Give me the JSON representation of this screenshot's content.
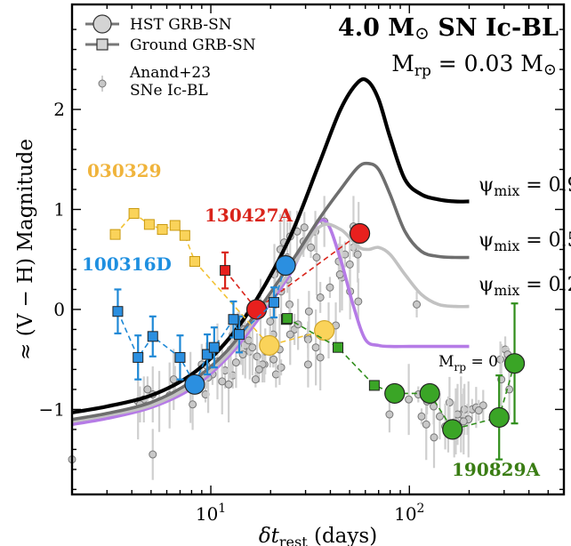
{
  "chart_data": {
    "type": "scatter",
    "title": "4.0 M⊙ SN Ic-BL",
    "subtitle": "Mrp = 0.03 M⊙",
    "title_lines": [
      {
        "main": "4.0 M",
        "sym": "⊙",
        "rest": " SN Ic-BL"
      },
      {
        "main": "M",
        "sub": "rp",
        "rest": " = 0.03 M",
        "sym": "⊙"
      }
    ],
    "xlabel": {
      "main": "δt",
      "sub": "rest",
      "rest": " (days)"
    },
    "ylabel": "≈ (V − H) Magnitude",
    "x_scale": "log",
    "xlim": [
      2,
      600
    ],
    "ylim": [
      -1.85,
      3.05
    ],
    "y_inverted": false,
    "grid": false,
    "xticks": [
      {
        "value": 10,
        "label": "10",
        "sup": "1"
      },
      {
        "value": 100,
        "label": "10",
        "sup": "2"
      }
    ],
    "yticks": [
      {
        "value": -1,
        "label": "−1"
      },
      {
        "value": 0,
        "label": "0"
      },
      {
        "value": 1,
        "label": "1"
      },
      {
        "value": 2,
        "label": "2"
      }
    ],
    "legend": {
      "placement": "top-left",
      "entries": [
        {
          "label": "HST GRB-SN",
          "marker": "circle"
        },
        {
          "label": "Ground GRB-SN",
          "marker": "square"
        },
        {
          "label": "Anand+23",
          "label2": "SNe Ic-BL",
          "marker": "small-circle-errorbar"
        }
      ]
    },
    "models": [
      {
        "label_main": "ψ",
        "label_sub": "mix",
        "label_rest": " = 0.9",
        "color": "#000000",
        "x": [
          2,
          3,
          5,
          8,
          12,
          17,
          25,
          35,
          45,
          55,
          62,
          70,
          80,
          95,
          115,
          140,
          170,
          200
        ],
        "y": [
          -1.03,
          -0.97,
          -0.86,
          -0.65,
          -0.32,
          0.1,
          0.72,
          1.45,
          2.0,
          2.27,
          2.28,
          2.1,
          1.72,
          1.3,
          1.15,
          1.1,
          1.08,
          1.08
        ]
      },
      {
        "label_main": "ψ",
        "label_sub": "mix",
        "label_rest": " = 0.5",
        "color": "#6e6e6e",
        "x": [
          2,
          3,
          5,
          8,
          12,
          17,
          25,
          35,
          45,
          55,
          62,
          70,
          80,
          95,
          115,
          140,
          170,
          200
        ],
        "y": [
          -1.1,
          -1.04,
          -0.93,
          -0.72,
          -0.42,
          -0.03,
          0.45,
          0.9,
          1.2,
          1.42,
          1.46,
          1.4,
          1.15,
          0.78,
          0.58,
          0.53,
          0.52,
          0.52
        ]
      },
      {
        "label_main": "ψ",
        "label_sub": "mix",
        "label_rest": " = 0.2",
        "color": "#c2c2c2",
        "x": [
          2,
          3,
          5,
          8,
          12,
          17,
          25,
          35,
          45,
          55,
          62,
          70,
          80,
          95,
          115,
          140,
          170,
          200
        ],
        "y": [
          -1.12,
          -1.06,
          -0.96,
          -0.76,
          -0.46,
          -0.08,
          0.38,
          0.82,
          0.8,
          0.63,
          0.6,
          0.62,
          0.55,
          0.35,
          0.15,
          0.05,
          0.03,
          0.03
        ]
      },
      {
        "label_main": "M",
        "label_sub": "rp",
        "label_rest": " = 0",
        "color": "#b57be6",
        "x": [
          2,
          3,
          5,
          8,
          12,
          17,
          25,
          32,
          38,
          45,
          52,
          60,
          70,
          80,
          100,
          130,
          170,
          200
        ],
        "y": [
          -1.15,
          -1.09,
          -0.98,
          -0.79,
          -0.49,
          -0.12,
          0.35,
          0.78,
          0.88,
          0.5,
          0.05,
          -0.3,
          -0.36,
          -0.37,
          -0.37,
          -0.37,
          -0.37,
          -0.37
        ]
      }
    ],
    "grb_sn": [
      {
        "name": "030329",
        "color": "#f2c233",
        "fill": "#fad35a",
        "ground": [
          {
            "x": 3.3,
            "y": 0.75
          },
          {
            "x": 4.1,
            "y": 0.96
          },
          {
            "x": 4.9,
            "y": 0.85
          },
          {
            "x": 5.7,
            "y": 0.8
          },
          {
            "x": 6.6,
            "y": 0.84
          },
          {
            "x": 7.4,
            "y": 0.74
          },
          {
            "x": 8.3,
            "y": 0.48
          }
        ],
        "hst": [
          {
            "x": 19.7,
            "y": -0.36
          },
          {
            "x": 37.3,
            "y": -0.21
          }
        ]
      },
      {
        "name": "130427A",
        "color": "#d9241b",
        "fill": "#e8201e",
        "ground": [
          {
            "x": 11.8,
            "y": 0.39,
            "err": 0.18
          }
        ],
        "hst": [
          {
            "x": 17.0,
            "y": 0.0
          },
          {
            "x": 56.3,
            "y": 0.76
          }
        ]
      },
      {
        "name": "100316D",
        "color": "#1f89d6",
        "fill": "#2b8fe0",
        "ground": [
          {
            "x": 3.4,
            "y": -0.02,
            "err": 0.22
          },
          {
            "x": 4.3,
            "y": -0.48,
            "err": 0.22
          },
          {
            "x": 5.1,
            "y": -0.27,
            "err": 0.2
          },
          {
            "x": 7.0,
            "y": -0.48,
            "err": 0.22
          },
          {
            "x": 9.6,
            "y": -0.45,
            "err": 0.2
          },
          {
            "x": 10.4,
            "y": -0.38,
            "err": 0.2
          },
          {
            "x": 13.0,
            "y": -0.1,
            "err": 0.18
          },
          {
            "x": 13.9,
            "y": -0.25,
            "err": 0.18
          },
          {
            "x": 20.8,
            "y": 0.07,
            "err": 0.15
          }
        ],
        "hst": [
          {
            "x": 8.3,
            "y": -0.75
          },
          {
            "x": 23.8,
            "y": 0.44
          }
        ]
      },
      {
        "name": "190829A",
        "color": "#2f8d1a",
        "fill": "#3aa526",
        "ground": [
          {
            "x": 24.0,
            "y": -0.1
          },
          {
            "x": 24.3,
            "y": -0.09
          },
          {
            "x": 43.7,
            "y": -0.38
          },
          {
            "x": 66.6,
            "y": -0.76
          }
        ],
        "hst": [
          {
            "x": 84.3,
            "y": -0.84
          },
          {
            "x": 126.7,
            "y": -0.84
          },
          {
            "x": 164.8,
            "y": -1.2
          },
          {
            "x": 283.2,
            "y": -1.08,
            "err": 0.42
          },
          {
            "x": 338.6,
            "y": -0.54,
            "err": 0.6
          }
        ]
      }
    ],
    "anand23": {
      "x": [
        2.0,
        7.9,
        5.5,
        8.1,
        9.0,
        6.6,
        10.2,
        4.3,
        6.2,
        5.1,
        4.6,
        4.4,
        4.8,
        9.4,
        9.7,
        6.5,
        14.2,
        13.7,
        13.9,
        12.9,
        10.8,
        14.9,
        15.7,
        9.5,
        11.8,
        12.9,
        14.7,
        17.8,
        12.6,
        13.4,
        14.5,
        15.5,
        16.4,
        12.3,
        11.4,
        16.2,
        17.1,
        18.6,
        21.3,
        22.6,
        24.3,
        20.9,
        22.6,
        24.9,
        26.4,
        30.8,
        33.8,
        35.6,
        39.2,
        42.6,
        44.1,
        47.4,
        52.3,
        55.5,
        52.3,
        37.3,
        33.6,
        29.3,
        24.5,
        21.1,
        20.6,
        19.9,
        18.8,
        18.2,
        17.5,
        16.8,
        22.4,
        23.4,
        25.1,
        27.2,
        29.6,
        31.9,
        34.1,
        45.8,
        50.3,
        55.3,
        30.9,
        19.9,
        20.7,
        22.2,
        25.1,
        27.5,
        31.2,
        35.6,
        39.8,
        44.7,
        50.1,
        54.9,
        30.9,
        79.4,
        108.9,
        115.2,
        121.6,
        133.1,
        159.3,
        183.0,
        196.0,
        207.0,
        182.0,
        171.3,
        156.9,
        142.3,
        132.5,
        122.7,
        110.9,
        99.3,
        174.9,
        189.4,
        216.9,
        235.4,
        223.6,
        198.5,
        187.6,
        168.2,
        151.5,
        287.3,
        304.0,
        312.6,
        290.4,
        318.6,
        5.1
      ],
      "y": [
        -1.5,
        -0.78,
        -0.92,
        -0.95,
        -0.55,
        -0.72,
        -0.65,
        -0.92,
        -0.86,
        -0.85,
        -0.9,
        -0.95,
        -0.8,
        -0.85,
        -0.68,
        -0.7,
        -0.3,
        -0.23,
        -0.17,
        -0.25,
        -0.52,
        -0.36,
        -0.42,
        -0.56,
        -0.61,
        -0.66,
        -0.2,
        -0.05,
        -0.4,
        -0.53,
        -0.45,
        -0.31,
        -0.02,
        -0.75,
        -0.72,
        -0.38,
        -0.47,
        -0.55,
        -0.65,
        -0.58,
        0.52,
        0.35,
        0.18,
        0.05,
        -0.2,
        -0.28,
        -0.38,
        -0.48,
        -0.21,
        -0.16,
        0.48,
        0.55,
        0.62,
        0.72,
        0.83,
        0.88,
        0.78,
        0.68,
        0.3,
        0.05,
        -0.25,
        -0.3,
        -0.42,
        -0.55,
        -0.6,
        -0.7,
        0.6,
        0.67,
        0.73,
        0.78,
        0.82,
        0.62,
        0.52,
        0.32,
        0.18,
        0.08,
        -0.3,
        -0.12,
        -0.5,
        -0.4,
        -0.25,
        -0.15,
        -0.02,
        0.12,
        0.22,
        0.35,
        0.45,
        0.55,
        -0.55,
        -1.05,
        0.05,
        -1.07,
        -1.15,
        -1.28,
        -0.93,
        -1.05,
        -1.1,
        -1.0,
        -1.05,
        -1.12,
        -1.15,
        -1.07,
        -0.97,
        -0.92,
        -0.85,
        -0.9,
        -1.05,
        -1.0,
        -0.98,
        -0.96,
        -1.01,
        -1.1,
        -1.12,
        -1.2,
        -1.17,
        -0.5,
        -0.4,
        -0.45,
        -0.7,
        -0.8,
        -1.45
      ]
    }
  }
}
